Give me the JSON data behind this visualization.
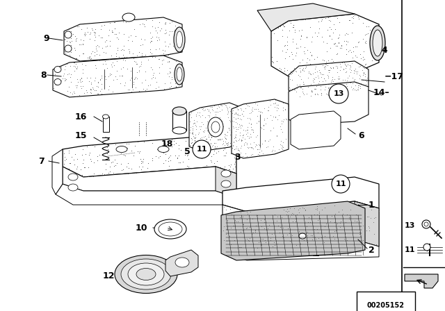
{
  "bg_color": "#ffffff",
  "footer_text": "00205152",
  "line_color": "#000000",
  "lw": 0.7,
  "dot_color": "#888888",
  "fig_w": 6.4,
  "fig_h": 4.48,
  "dpi": 100
}
